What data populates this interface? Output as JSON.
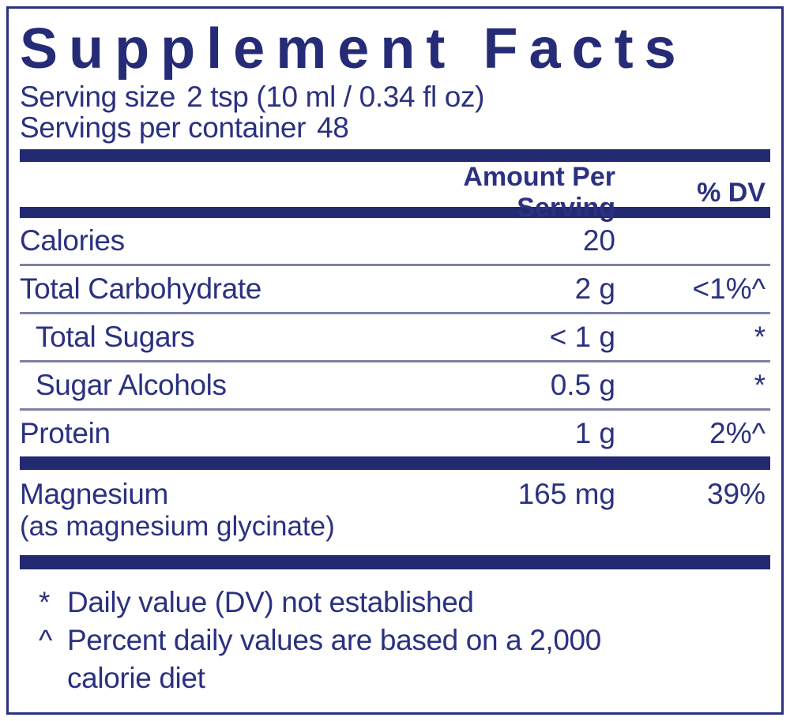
{
  "panel": {
    "title": "Supplement Facts",
    "serving": {
      "size_label": "Serving size",
      "size_value": "2 tsp (10 ml / 0.34 fl oz)",
      "per_container_label": "Servings per container",
      "per_container_value": "48"
    },
    "columns": {
      "amount": "Amount Per Serving",
      "dv": "% DV"
    },
    "rows": [
      {
        "name": "Calories",
        "amount": "20",
        "dv": ""
      },
      {
        "name": "Total Carbohydrate",
        "amount": "2 g",
        "dv": "<1%^"
      },
      {
        "name": "Total Sugars",
        "amount": "< 1 g",
        "dv": "*"
      },
      {
        "name": "Sugar Alcohols",
        "amount": "0.5 g",
        "dv": "*"
      },
      {
        "name": "Protein",
        "amount": "1 g",
        "dv": "2%^"
      }
    ],
    "nutrient": {
      "name": "Magnesium",
      "source": "(as magnesium glycinate)",
      "amount": "165 mg",
      "dv": "39%"
    },
    "footnotes": [
      {
        "marker": "*",
        "text": "Daily value (DV) not established"
      },
      {
        "marker": "^",
        "text": "Percent daily values are based on a 2,000 calorie diet"
      }
    ],
    "colors": {
      "navy_text": "#2b3180",
      "title_navy": "#262b77",
      "bar_navy": "#232a72",
      "rule_gray": "#7c81a4",
      "background": "#ffffff"
    }
  }
}
